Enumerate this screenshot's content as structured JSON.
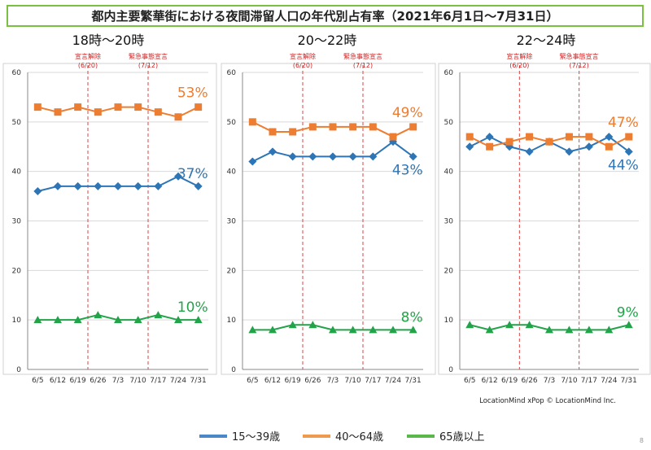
{
  "title": "都内主要繁華街における夜間滞留人口の年代別占有率（2021年6月1日〜7月31日）",
  "credit": "LocationMind xPop © LocationMind Inc.",
  "page_number": "8",
  "colors": {
    "young": "#2e75b6",
    "middle": "#ed7d31",
    "senior": "#22a34a",
    "event_line": "#e04040",
    "frame": "#7ac143",
    "grid": "#d9d9d9"
  },
  "legend": [
    {
      "label": "15〜39歳",
      "color": "#4a86c8"
    },
    {
      "label": "40〜64歳",
      "color": "#ed9a4e"
    },
    {
      "label": "65歳以上",
      "color": "#5ab84a"
    }
  ],
  "chart_data": [
    {
      "type": "line",
      "title": "18時〜20時",
      "categories": [
        "6/5",
        "6/12",
        "6/19",
        "6/26",
        "7/3",
        "7/10",
        "7/17",
        "7/24",
        "7/31"
      ],
      "ylim": [
        0,
        60
      ],
      "yticks": [
        "0",
        "10",
        "20",
        "30",
        "40",
        "50",
        "60"
      ],
      "events": [
        {
          "label": "宣言解除",
          "date": "(6/20)",
          "position": 2.5
        },
        {
          "label": "緊急事態宣言",
          "date": "(7/12)",
          "position": 5.5
        }
      ],
      "series": [
        {
          "key": "young",
          "marker": "diamond",
          "values": [
            36,
            37,
            37,
            37,
            37,
            37,
            37,
            39,
            37
          ],
          "end_label": "37%"
        },
        {
          "key": "middle",
          "marker": "square",
          "values": [
            53,
            52,
            53,
            52,
            53,
            53,
            52,
            51,
            53
          ],
          "end_label": "53%"
        },
        {
          "key": "senior",
          "marker": "triangle",
          "values": [
            10,
            10,
            10,
            11,
            10,
            10,
            11,
            10,
            10
          ],
          "end_label": "10%"
        }
      ]
    },
    {
      "type": "line",
      "title": "20〜22時",
      "categories": [
        "6/5",
        "6/12",
        "6/19",
        "6/26",
        "7/3",
        "7/10",
        "7/17",
        "7/24",
        "7/31"
      ],
      "ylim": [
        0,
        60
      ],
      "yticks": [
        "0",
        "10",
        "20",
        "30",
        "40",
        "50",
        "60"
      ],
      "events": [
        {
          "label": "宣言解除",
          "date": "(6/20)",
          "position": 2.5
        },
        {
          "label": "緊急事態宣言",
          "date": "(7/12)",
          "position": 5.5
        }
      ],
      "series": [
        {
          "key": "young",
          "marker": "diamond",
          "values": [
            42,
            44,
            43,
            43,
            43,
            43,
            43,
            46,
            43
          ],
          "end_label": "43%"
        },
        {
          "key": "middle",
          "marker": "square",
          "values": [
            50,
            48,
            48,
            49,
            49,
            49,
            49,
            47,
            49
          ],
          "end_label": "49%"
        },
        {
          "key": "senior",
          "marker": "triangle",
          "values": [
            8,
            8,
            9,
            9,
            8,
            8,
            8,
            8,
            8
          ],
          "end_label": "8%"
        }
      ]
    },
    {
      "type": "line",
      "title": "22〜24時",
      "categories": [
        "6/5",
        "6/12",
        "6/19",
        "6/26",
        "7/3",
        "7/10",
        "7/17",
        "7/24",
        "7/31"
      ],
      "ylim": [
        0,
        60
      ],
      "yticks": [
        "0",
        "10",
        "20",
        "30",
        "40",
        "50",
        "60"
      ],
      "events": [
        {
          "label": "宣言解除",
          "date": "(6/20)",
          "position": 2.5
        },
        {
          "label": "緊急事態宣言",
          "date": "(7/12)",
          "position": 5.5
        }
      ],
      "series": [
        {
          "key": "young",
          "marker": "diamond",
          "values": [
            45,
            47,
            45,
            44,
            46,
            44,
            45,
            47,
            44
          ],
          "end_label": "44%"
        },
        {
          "key": "middle",
          "marker": "square",
          "values": [
            47,
            45,
            46,
            47,
            46,
            47,
            47,
            45,
            47
          ],
          "end_label": "47%"
        },
        {
          "key": "senior",
          "marker": "triangle",
          "values": [
            9,
            8,
            9,
            9,
            8,
            8,
            8,
            8,
            9
          ],
          "end_label": "9%"
        }
      ]
    }
  ]
}
